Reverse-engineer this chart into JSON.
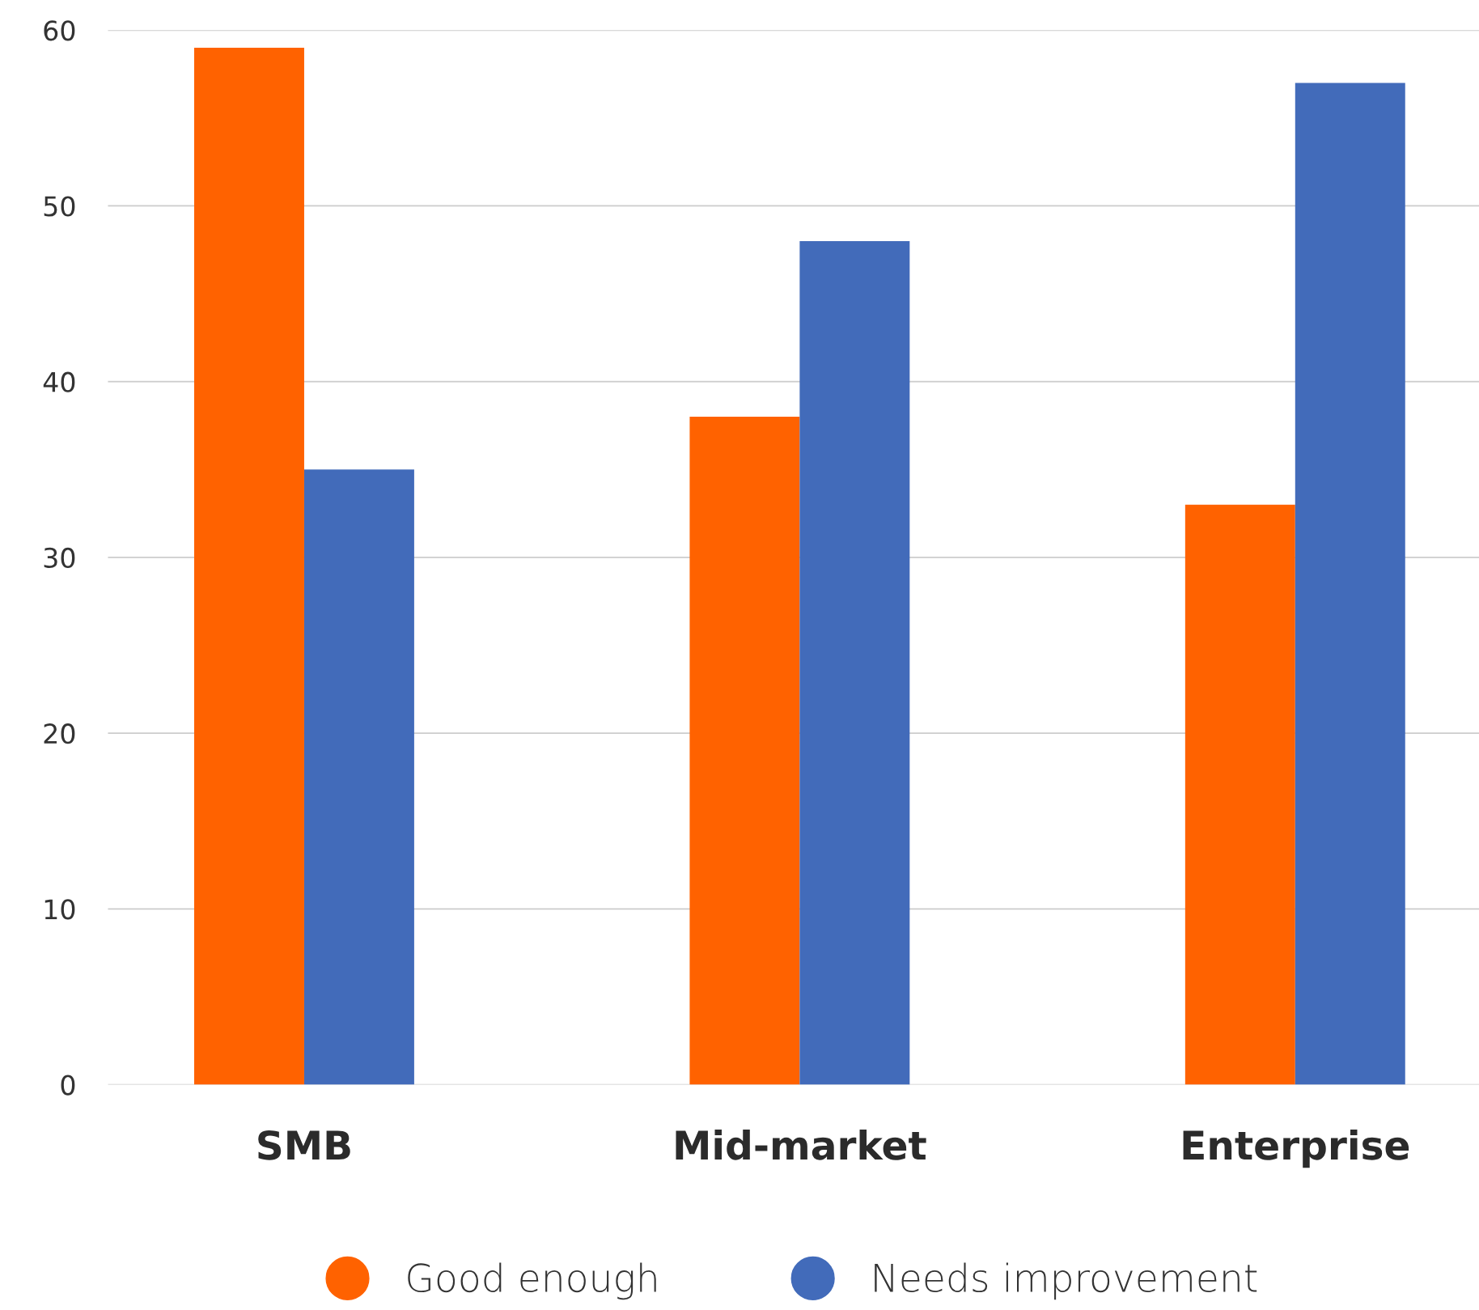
{
  "chart_data": {
    "type": "bar",
    "categories": [
      "SMB",
      "Mid-market",
      "Enterprise"
    ],
    "series": [
      {
        "name": "Good enough",
        "color": "#ff6200",
        "values": [
          59,
          38,
          33
        ]
      },
      {
        "name": "Needs improvement",
        "color": "#426bba",
        "values": [
          35,
          48,
          57
        ]
      }
    ],
    "ylim": [
      0,
      60
    ],
    "yticks": [
      0,
      10,
      20,
      30,
      40,
      50,
      60
    ],
    "grid": "y",
    "legend": "bottom"
  }
}
